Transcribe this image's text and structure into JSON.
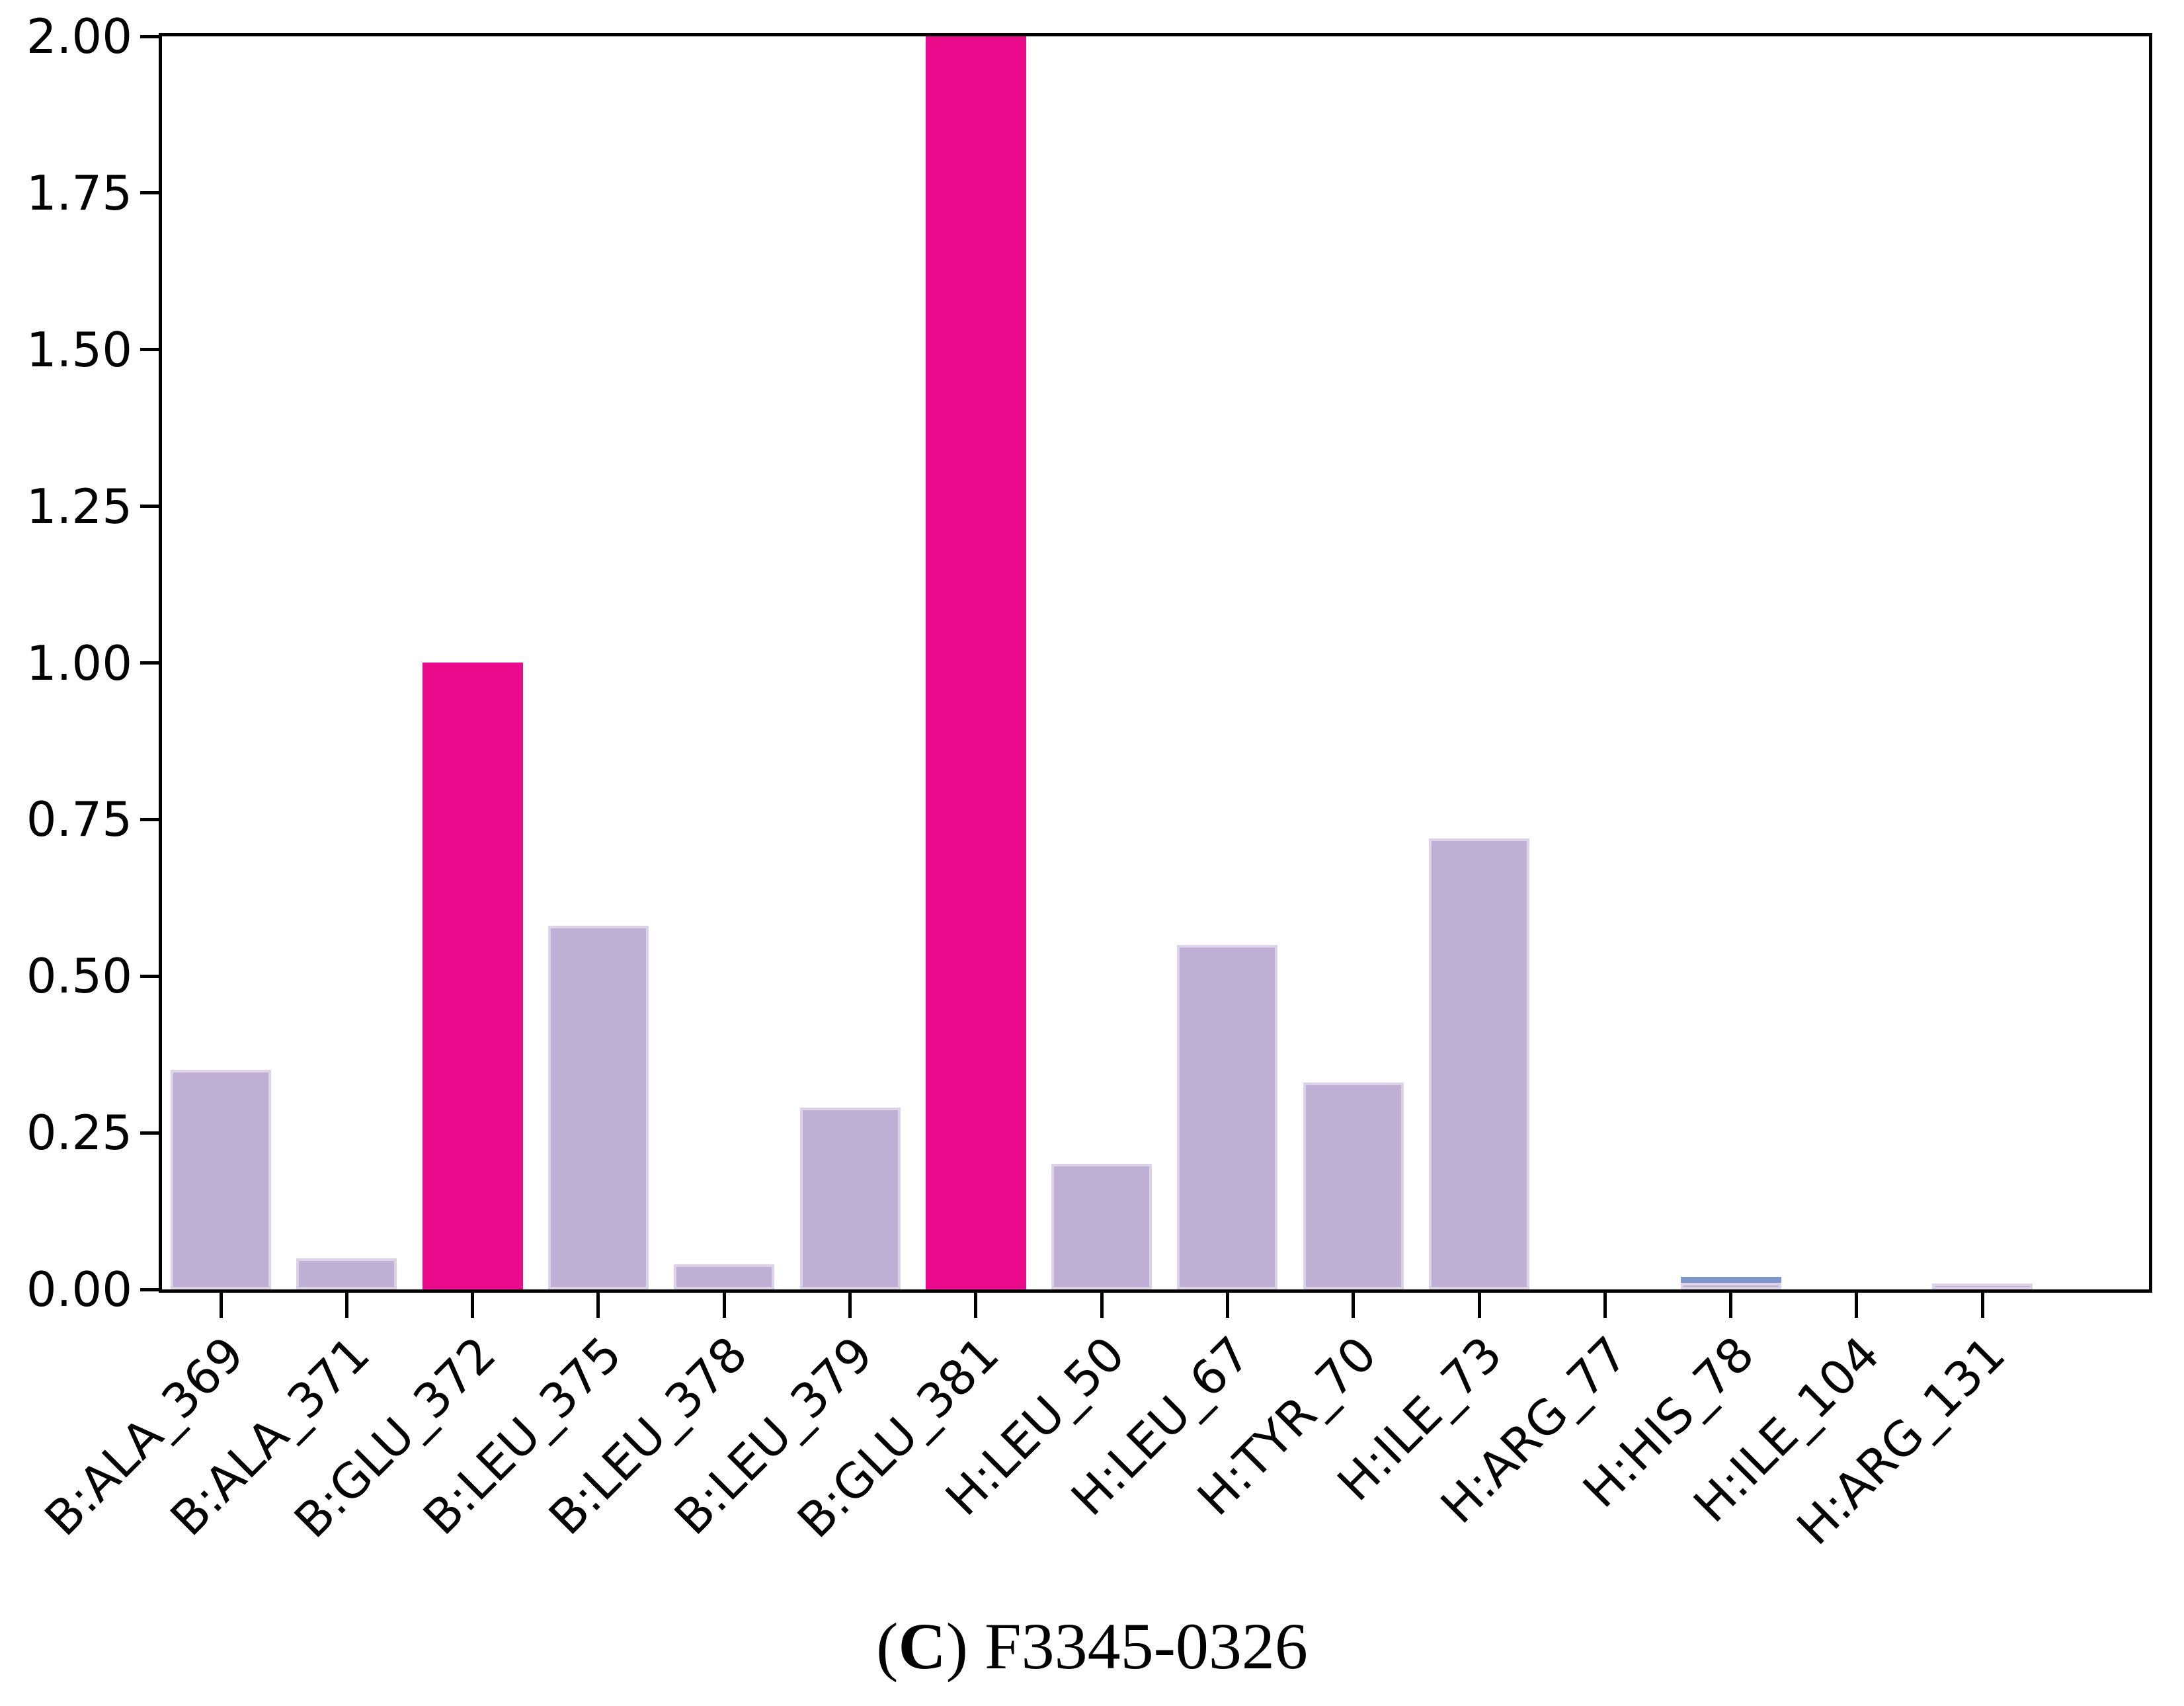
{
  "figure": {
    "caption": {
      "open": "(",
      "letter": "C",
      "rest": ") F3345-0326"
    }
  },
  "chart_data": {
    "type": "bar",
    "title": "",
    "xlabel": "",
    "ylabel": "",
    "categories": [
      "B:ALA_369",
      "B:ALA_371",
      "B:GLU_372",
      "B:LEU_375",
      "B:LEU_378",
      "B:LEU_379",
      "B:GLU_381",
      "H:LEU_50",
      "H:LEU_67",
      "H:TYR_70",
      "H:ILE_73",
      "H:ARG_77",
      "H:HIS_78",
      "H:ILE_104",
      "H:ARG_131"
    ],
    "values": [
      0.35,
      0.05,
      1.0,
      0.58,
      0.04,
      0.29,
      2.0,
      0.2,
      0.55,
      0.33,
      0.72,
      0.0,
      0.02,
      0.0,
      0.01
    ],
    "bar_colors": [
      "#beafd4",
      "#beafd4",
      "#eb0a8c",
      "#beafd4",
      "#beafd4",
      "#beafd4",
      "#eb0a8c",
      "#beafd4",
      "#beafd4",
      "#beafd4",
      "#beafd4",
      "#beafd4",
      "#beafd4",
      "#beafd4",
      "#beafd4"
    ],
    "highlighted_categories": [
      "B:GLU_372",
      "B:GLU_381"
    ],
    "highlight_color": "#eb0a8c",
    "default_bar_color": "#beafd4",
    "capped_categories": [
      "H:HIS_78"
    ],
    "cap_color": "#7e96cb",
    "ylim": [
      0,
      2.0
    ],
    "yticks": [
      "0.00",
      "0.25",
      "0.50",
      "0.75",
      "1.00",
      "1.25",
      "1.50",
      "1.75",
      "2.00"
    ],
    "x_tick_rotation_deg": 45,
    "grid": false,
    "legend_position": "none",
    "axis_color": "#000000"
  }
}
